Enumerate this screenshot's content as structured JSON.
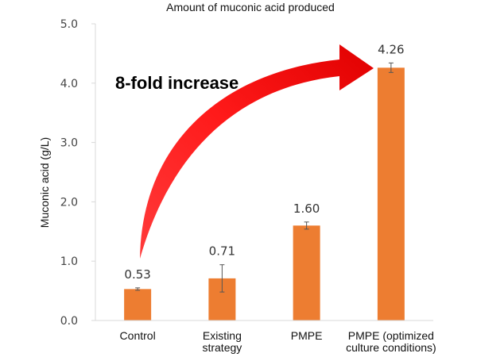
{
  "chart_data": {
    "type": "bar",
    "title": "Amount of muconic acid produced",
    "ylabel": "Muconic acid (g/L)",
    "xlabel": "",
    "categories": [
      [
        "Control"
      ],
      [
        "Existing",
        "strategy"
      ],
      [
        "PMPE"
      ],
      [
        "PMPE (optimized",
        "culture conditions)"
      ]
    ],
    "values": [
      0.53,
      0.71,
      1.6,
      4.26
    ],
    "value_labels": [
      "0.53",
      "0.71",
      "1.60",
      "4.26"
    ],
    "errors": [
      0.02,
      0.23,
      0.06,
      0.08
    ],
    "ylim": [
      0,
      5.0
    ],
    "yticks": [
      0.0,
      1.0,
      2.0,
      3.0,
      4.0,
      5.0
    ],
    "ytick_labels": [
      "0.0",
      "1.0",
      "2.0",
      "3.0",
      "4.0",
      "5.0"
    ],
    "grid": false,
    "bar_color": "#ED7D31",
    "annotation": {
      "text": "8-fold increase",
      "color": "#E8141B"
    }
  }
}
